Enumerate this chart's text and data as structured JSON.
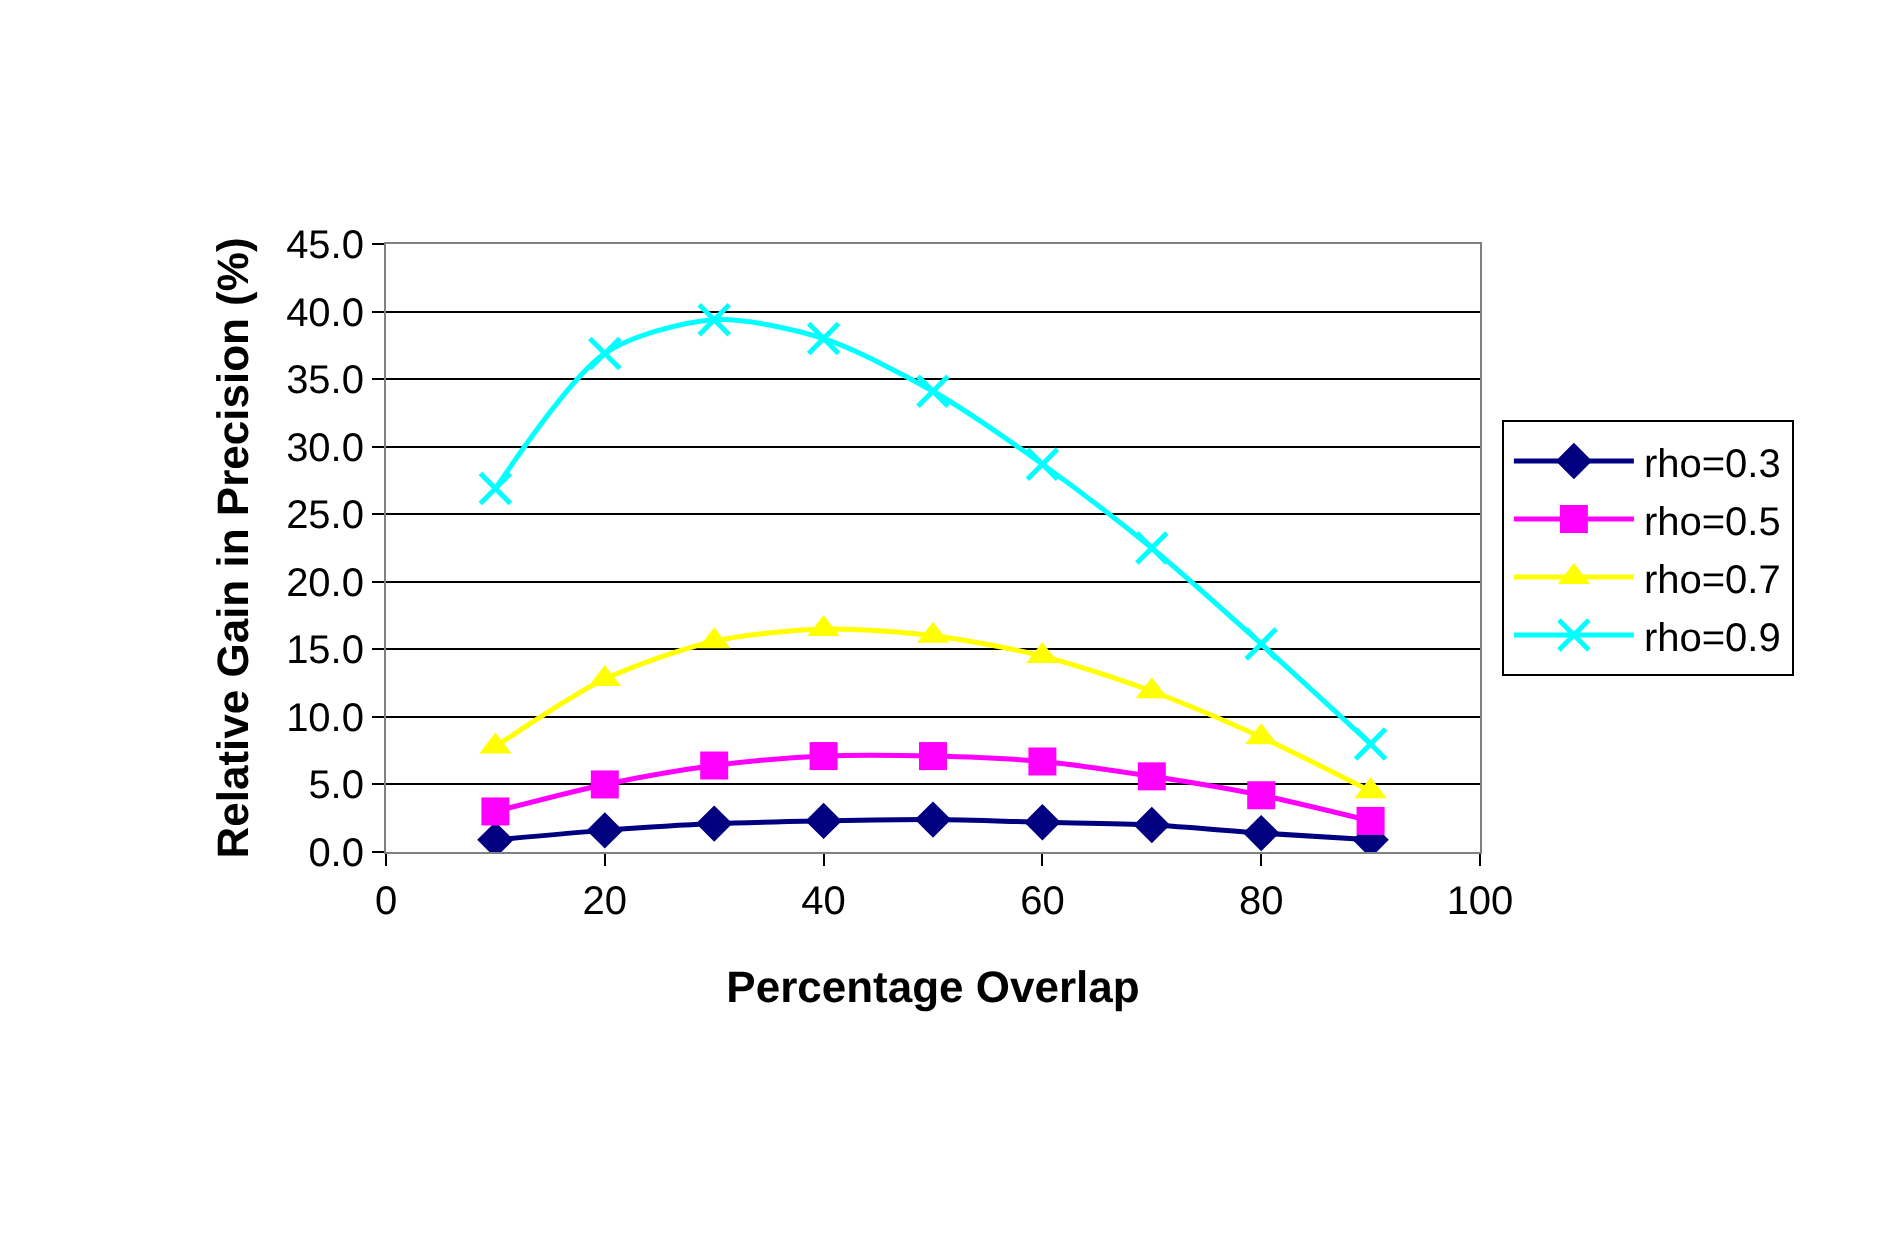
{
  "chart_data": {
    "type": "line",
    "xlabel": "Percentage Overlap",
    "ylabel": "Relative Gain in Precision (%)",
    "x": [
      10,
      20,
      30,
      40,
      50,
      60,
      70,
      80,
      90
    ],
    "series": [
      {
        "name": "rho=0.3",
        "color": "#000080",
        "marker": "diamond",
        "values": [
          0.9,
          1.6,
          2.1,
          2.3,
          2.4,
          2.2,
          2.0,
          1.4,
          0.9
        ]
      },
      {
        "name": "rho=0.5",
        "color": "#ff00ff",
        "marker": "square",
        "values": [
          3.0,
          5.0,
          6.4,
          7.1,
          7.1,
          6.7,
          5.6,
          4.2,
          2.3
        ]
      },
      {
        "name": "rho=0.7",
        "color": "#ffff00",
        "marker": "triangle",
        "values": [
          7.8,
          12.8,
          15.6,
          16.5,
          16.0,
          14.5,
          11.9,
          8.5,
          4.5
        ]
      },
      {
        "name": "rho=0.9",
        "color": "#00ffff",
        "marker": "cross",
        "values": [
          26.9,
          36.9,
          39.4,
          38.0,
          34.1,
          28.7,
          22.5,
          15.4,
          8.0
        ]
      }
    ],
    "xlim": [
      0,
      100
    ],
    "xticks": [
      0,
      20,
      40,
      60,
      80,
      100
    ],
    "ylim": [
      0,
      45
    ],
    "yticks": [
      {
        "value": 0,
        "label": "0.0"
      },
      {
        "value": 5,
        "label": "5.0"
      },
      {
        "value": 10,
        "label": "10.0"
      },
      {
        "value": 15,
        "label": "15.0"
      },
      {
        "value": 20,
        "label": "20.0"
      },
      {
        "value": 25,
        "label": "25.0"
      },
      {
        "value": 30,
        "label": "30.0"
      },
      {
        "value": 35,
        "label": "35.0"
      },
      {
        "value": 40,
        "label": "40.0"
      },
      {
        "value": 45,
        "label": "45.0"
      }
    ],
    "grid": "y",
    "legend": "right"
  }
}
